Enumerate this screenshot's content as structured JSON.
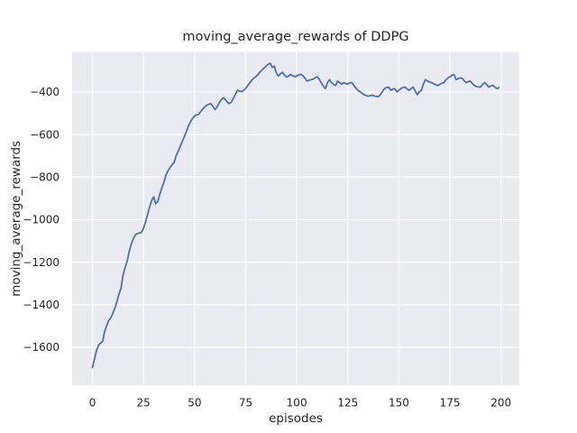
{
  "figure": {
    "background": "#ffffff"
  },
  "chart_data": {
    "type": "line",
    "title": "moving_average_rewards of DDPG",
    "xlabel": "episodes",
    "ylabel": "moving_average_rewards",
    "legend_position": "none",
    "grid": true,
    "style": "seaborn-darkgrid",
    "x_start": 0,
    "x_step": 1,
    "xlim": [
      -9.95,
      208.95
    ],
    "ylim": [
      -1779,
      -212
    ],
    "xticks": {
      "values": [
        0,
        25,
        50,
        75,
        100,
        125,
        150,
        175,
        200
      ],
      "labels": [
        "0",
        "25",
        "50",
        "75",
        "100",
        "125",
        "150",
        "175",
        "200"
      ]
    },
    "yticks": {
      "values": [
        -400,
        -600,
        -800,
        -1000,
        -1200,
        -1400,
        -1600
      ],
      "labels": [
        "−400",
        "−600",
        "−800",
        "−1000",
        "−1200",
        "−1400",
        "−1600"
      ]
    },
    "colors": {
      "line": "#4C72B0",
      "plot_bg": "#EAEAF2",
      "grid": "#FFFFFF",
      "text": "#262626",
      "figure_bg": "#FFFFFF"
    },
    "series": [
      {
        "name": "moving_average_rewards",
        "color": "#4C72B0",
        "values": [
          -1695,
          -1655,
          -1615,
          -1590,
          -1580,
          -1572,
          -1525,
          -1498,
          -1473,
          -1462,
          -1440,
          -1415,
          -1385,
          -1350,
          -1322,
          -1260,
          -1225,
          -1195,
          -1150,
          -1115,
          -1090,
          -1072,
          -1066,
          -1063,
          -1060,
          -1040,
          -1010,
          -977,
          -940,
          -910,
          -893,
          -925,
          -915,
          -880,
          -850,
          -823,
          -790,
          -770,
          -755,
          -742,
          -731,
          -700,
          -678,
          -655,
          -632,
          -610,
          -585,
          -560,
          -540,
          -525,
          -512,
          -508,
          -505,
          -492,
          -480,
          -470,
          -462,
          -458,
          -455,
          -468,
          -483,
          -470,
          -452,
          -437,
          -427,
          -436,
          -447,
          -455,
          -448,
          -430,
          -410,
          -392,
          -396,
          -399,
          -392,
          -383,
          -370,
          -357,
          -345,
          -335,
          -328,
          -318,
          -307,
          -297,
          -288,
          -278,
          -270,
          -265,
          -285,
          -278,
          -310,
          -325,
          -315,
          -308,
          -320,
          -330,
          -325,
          -318,
          -323,
          -328,
          -325,
          -320,
          -317,
          -323,
          -335,
          -349,
          -345,
          -342,
          -340,
          -334,
          -328,
          -340,
          -356,
          -372,
          -384,
          -358,
          -342,
          -356,
          -364,
          -370,
          -349,
          -356,
          -363,
          -356,
          -360,
          -363,
          -357,
          -356,
          -370,
          -382,
          -392,
          -399,
          -407,
          -413,
          -417,
          -420,
          -417,
          -415,
          -419,
          -421,
          -422,
          -412,
          -398,
          -384,
          -379,
          -377,
          -392,
          -387,
          -384,
          -399,
          -392,
          -384,
          -379,
          -377,
          -386,
          -392,
          -384,
          -377,
          -396,
          -413,
          -399,
          -392,
          -363,
          -342,
          -348,
          -353,
          -356,
          -361,
          -366,
          -370,
          -364,
          -359,
          -356,
          -344,
          -334,
          -328,
          -322,
          -318,
          -342,
          -337,
          -334,
          -336,
          -348,
          -356,
          -351,
          -349,
          -361,
          -370,
          -374,
          -377,
          -376,
          -365,
          -356,
          -366,
          -377,
          -372,
          -369,
          -377,
          -384,
          -380
        ]
      }
    ]
  }
}
